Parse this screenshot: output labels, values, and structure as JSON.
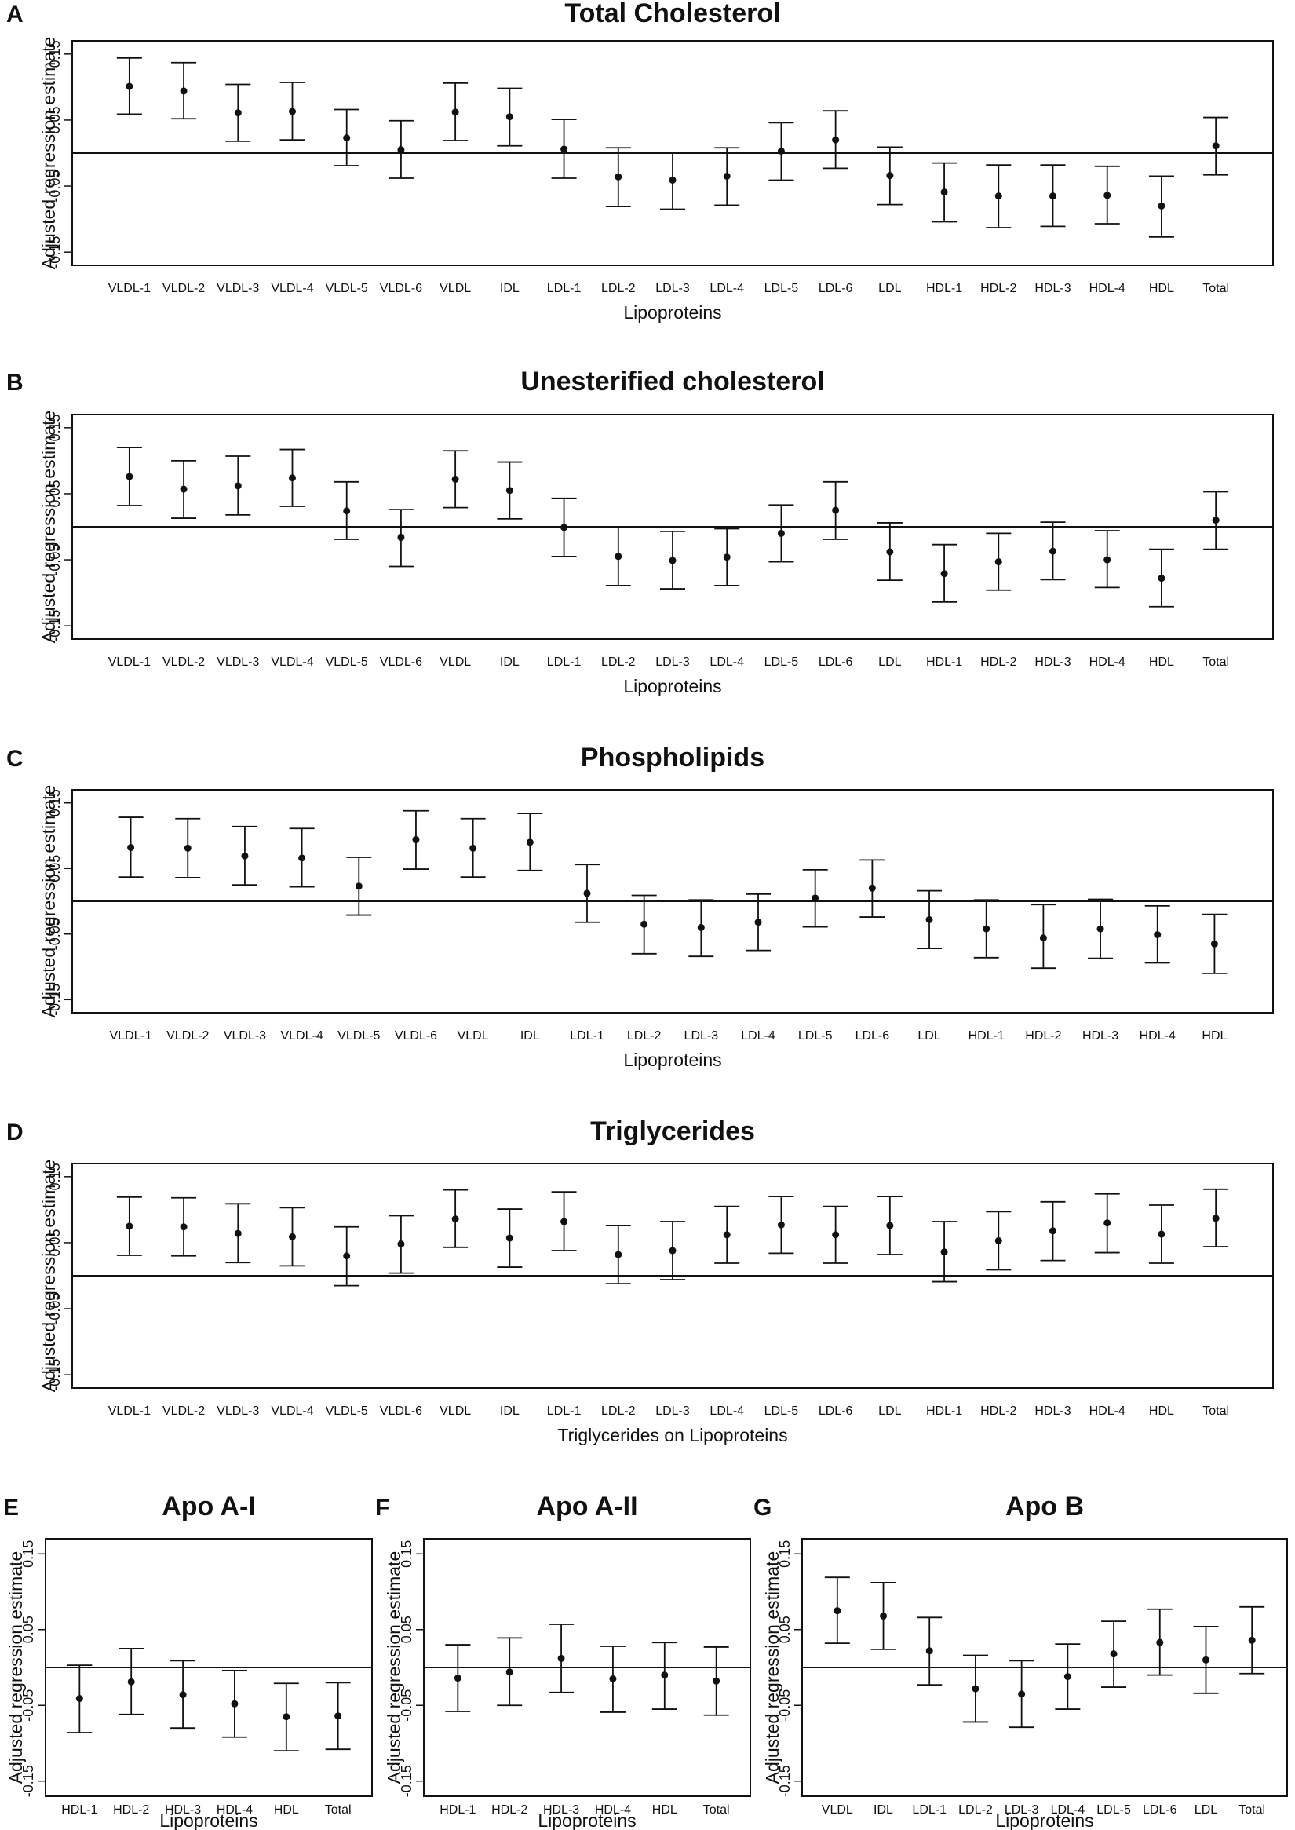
{
  "figure": {
    "ylabel": "Adjusted regression estimate"
  },
  "chart_data": [
    {
      "panel": "A",
      "type": "scatter",
      "title": "Total Cholesterol",
      "xlabel": "Lipoproteins",
      "ylabel": "Adjusted regression estimate",
      "ylim": [
        -0.17,
        0.17
      ],
      "yticks": [
        "-0.15",
        "-0.05",
        "0.05",
        "0.15"
      ],
      "reference_line": 0,
      "categories": [
        "VLDL-1",
        "VLDL-2",
        "VLDL-3",
        "VLDL-4",
        "VLDL-5",
        "VLDL-6",
        "VLDL",
        "IDL",
        "LDL-1",
        "LDL-2",
        "LDL-3",
        "LDL-4",
        "LDL-5",
        "LDL-6",
        "LDL",
        "HDL-1",
        "HDL-2",
        "HDL-3",
        "HDL-4",
        "HDL",
        "Total"
      ],
      "estimate": [
        0.101,
        0.094,
        0.061,
        0.063,
        0.023,
        0.005,
        0.062,
        0.055,
        0.006,
        -0.036,
        -0.041,
        -0.035,
        0.003,
        0.02,
        -0.034,
        -0.059,
        -0.065,
        -0.065,
        -0.064,
        -0.08,
        0.011
      ],
      "lower": [
        0.059,
        0.052,
        0.018,
        0.02,
        -0.019,
        -0.038,
        0.019,
        0.011,
        -0.038,
        -0.081,
        -0.085,
        -0.079,
        -0.041,
        -0.023,
        -0.078,
        -0.104,
        -0.113,
        -0.111,
        -0.107,
        -0.127,
        -0.033
      ],
      "upper": [
        0.144,
        0.137,
        0.104,
        0.107,
        0.066,
        0.049,
        0.106,
        0.098,
        0.051,
        0.008,
        0.001,
        0.008,
        0.046,
        0.064,
        0.009,
        -0.015,
        -0.018,
        -0.018,
        -0.02,
        -0.035,
        0.054
      ]
    },
    {
      "panel": "B",
      "type": "scatter",
      "title": "Unesterified cholesterol",
      "xlabel": "Lipoproteins",
      "ylabel": "Adjusted regression estimate",
      "ylim": [
        -0.17,
        0.17
      ],
      "yticks": [
        "-0.15",
        "-0.05",
        "0.05",
        "0.15"
      ],
      "reference_line": 0,
      "categories": [
        "VLDL-1",
        "VLDL-2",
        "VLDL-3",
        "VLDL-4",
        "VLDL-5",
        "VLDL-6",
        "VLDL",
        "IDL",
        "LDL-1",
        "LDL-2",
        "LDL-3",
        "LDL-4",
        "LDL-5",
        "LDL-6",
        "LDL",
        "HDL-1",
        "HDL-2",
        "HDL-3",
        "HDL-4",
        "HDL",
        "Total"
      ],
      "estimate": [
        0.076,
        0.057,
        0.062,
        0.074,
        0.024,
        -0.016,
        0.072,
        0.055,
        -0.001,
        -0.045,
        -0.051,
        -0.046,
        -0.01,
        0.025,
        -0.038,
        -0.071,
        -0.053,
        -0.037,
        -0.05,
        -0.078,
        0.01
      ],
      "lower": [
        0.032,
        0.013,
        0.018,
        0.031,
        -0.019,
        -0.06,
        0.029,
        0.012,
        -0.045,
        -0.089,
        -0.094,
        -0.089,
        -0.053,
        -0.019,
        -0.081,
        -0.114,
        -0.096,
        -0.08,
        -0.092,
        -0.121,
        -0.034
      ],
      "upper": [
        0.12,
        0.1,
        0.107,
        0.117,
        0.068,
        0.026,
        0.115,
        0.098,
        0.043,
        0.0,
        -0.007,
        -0.003,
        0.033,
        0.068,
        0.006,
        -0.027,
        -0.01,
        0.007,
        -0.006,
        -0.034,
        0.053
      ]
    },
    {
      "panel": "C",
      "type": "scatter",
      "title": "Phospholipids",
      "xlabel": "Lipoproteins",
      "ylabel": "Adjusted regression estimate",
      "ylim": [
        -0.17,
        0.17
      ],
      "yticks": [
        "-0.15",
        "-0.05",
        "0.05",
        "0.15"
      ],
      "reference_line": 0,
      "categories": [
        "VLDL-1",
        "VLDL-2",
        "VLDL-3",
        "VLDL-4",
        "VLDL-5",
        "VLDL-6",
        "VLDL",
        "IDL",
        "LDL-1",
        "LDL-2",
        "LDL-3",
        "LDL-4",
        "LDL-5",
        "LDL-6",
        "LDL",
        "HDL-1",
        "HDL-2",
        "HDL-3",
        "HDL-4",
        "HDL"
      ],
      "estimate": [
        0.082,
        0.081,
        0.069,
        0.066,
        0.023,
        0.094,
        0.081,
        0.09,
        0.012,
        -0.035,
        -0.04,
        -0.032,
        0.005,
        0.02,
        -0.028,
        -0.042,
        -0.056,
        -0.042,
        -0.051,
        -0.065
      ],
      "lower": [
        0.037,
        0.036,
        0.025,
        0.022,
        -0.021,
        0.049,
        0.037,
        0.047,
        -0.032,
        -0.08,
        -0.084,
        -0.075,
        -0.039,
        -0.024,
        -0.072,
        -0.086,
        -0.102,
        -0.087,
        -0.094,
        -0.11
      ],
      "upper": [
        0.128,
        0.126,
        0.114,
        0.111,
        0.067,
        0.138,
        0.126,
        0.134,
        0.056,
        0.009,
        0.002,
        0.011,
        0.048,
        0.063,
        0.016,
        0.002,
        -0.005,
        0.003,
        -0.007,
        -0.02
      ]
    },
    {
      "panel": "D",
      "type": "scatter",
      "title": "Triglycerides",
      "xlabel": "Triglycerides on Lipoproteins",
      "ylabel": "Adjusted regression estimate",
      "ylim": [
        -0.17,
        0.17
      ],
      "yticks": [
        "-0.15",
        "-0.05",
        "0.05",
        "0.15"
      ],
      "reference_line": 0,
      "categories": [
        "VLDL-1",
        "VLDL-2",
        "VLDL-3",
        "VLDL-4",
        "VLDL-5",
        "VLDL-6",
        "VLDL",
        "IDL",
        "LDL-1",
        "LDL-2",
        "LDL-3",
        "LDL-4",
        "LDL-5",
        "LDL-6",
        "LDL",
        "HDL-1",
        "HDL-2",
        "HDL-3",
        "HDL-4",
        "HDL",
        "Total"
      ],
      "estimate": [
        0.075,
        0.074,
        0.064,
        0.059,
        0.03,
        0.048,
        0.086,
        0.057,
        0.082,
        0.032,
        0.038,
        0.062,
        0.077,
        0.062,
        0.076,
        0.036,
        0.053,
        0.068,
        0.08,
        0.063,
        0.087
      ],
      "lower": [
        0.031,
        0.03,
        0.02,
        0.015,
        -0.015,
        0.004,
        0.043,
        0.013,
        0.038,
        -0.012,
        -0.006,
        0.019,
        0.034,
        0.019,
        0.032,
        -0.009,
        0.009,
        0.023,
        0.035,
        0.019,
        0.044
      ],
      "upper": [
        0.119,
        0.118,
        0.109,
        0.103,
        0.074,
        0.091,
        0.13,
        0.101,
        0.127,
        0.076,
        0.082,
        0.105,
        0.12,
        0.105,
        0.12,
        0.082,
        0.097,
        0.112,
        0.124,
        0.107,
        0.131
      ]
    },
    {
      "panel": "E",
      "type": "scatter",
      "title": "Apo A-I",
      "xlabel": "Lipoproteins",
      "ylabel": "Adjusted regression estimate",
      "ylim": [
        -0.17,
        0.17
      ],
      "yticks": [
        "-0.15",
        "-0.05",
        "0.05",
        "0.15"
      ],
      "reference_line": 0,
      "categories": [
        "HDL-1",
        "HDL-2",
        "HDL-3",
        "HDL-4",
        "HDL",
        "Total"
      ],
      "estimate": [
        -0.041,
        -0.019,
        -0.036,
        -0.048,
        -0.065,
        -0.064
      ],
      "lower": [
        -0.086,
        -0.062,
        -0.08,
        -0.092,
        -0.11,
        -0.108
      ],
      "upper": [
        0.003,
        0.025,
        0.009,
        -0.004,
        -0.021,
        -0.02
      ]
    },
    {
      "panel": "F",
      "type": "scatter",
      "title": "Apo A-II",
      "xlabel": "Lipoproteins",
      "ylabel": "Adjusted regression estimate",
      "ylim": [
        -0.17,
        0.17
      ],
      "yticks": [
        "-0.15",
        "-0.05",
        "0.05",
        "0.15"
      ],
      "reference_line": 0,
      "categories": [
        "HDL-1",
        "HDL-2",
        "HDL-3",
        "HDL-4",
        "HDL",
        "Total"
      ],
      "estimate": [
        -0.014,
        -0.006,
        0.012,
        -0.015,
        -0.01,
        -0.018
      ],
      "lower": [
        -0.058,
        -0.05,
        -0.033,
        -0.059,
        -0.055,
        -0.063
      ],
      "upper": [
        0.03,
        0.039,
        0.057,
        0.028,
        0.033,
        0.027
      ]
    },
    {
      "panel": "G",
      "type": "scatter",
      "title": "Apo B",
      "xlabel": "Lipoproteins",
      "ylabel": "Adjusted regression estimate",
      "ylim": [
        -0.17,
        0.17
      ],
      "yticks": [
        "-0.15",
        "-0.05",
        "0.05",
        "0.15"
      ],
      "reference_line": 0,
      "categories": [
        "VLDL",
        "IDL",
        "LDL-1",
        "LDL-2",
        "LDL-3",
        "LDL-4",
        "LDL-5",
        "LDL-6",
        "LDL",
        "Total"
      ],
      "estimate": [
        0.075,
        0.068,
        0.022,
        -0.028,
        -0.035,
        -0.012,
        0.018,
        0.033,
        0.01,
        0.036
      ],
      "lower": [
        0.032,
        0.024,
        -0.023,
        -0.072,
        -0.079,
        -0.055,
        -0.026,
        -0.01,
        -0.034,
        -0.008
      ],
      "upper": [
        0.119,
        0.112,
        0.066,
        0.016,
        0.009,
        0.031,
        0.061,
        0.077,
        0.054,
        0.08
      ]
    }
  ]
}
